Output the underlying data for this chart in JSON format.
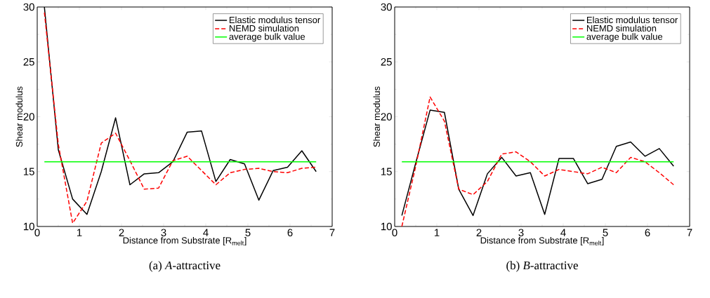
{
  "chart_data": [
    {
      "type": "line",
      "subtitle": "(a) *A*-attractive",
      "xlabel": "Distance from Substrate [R$_{melt}$]",
      "ylabel": "Shear modulus",
      "xlim": [
        0,
        7
      ],
      "ylim": [
        10,
        30
      ],
      "xticks": [
        0,
        1,
        2,
        3,
        4,
        5,
        6,
        7
      ],
      "yticks": [
        10,
        15,
        20,
        25,
        30
      ],
      "legend": "top right",
      "grid": false,
      "series": [
        {
          "name": "Elastic modulus tensor",
          "color": "#000000",
          "line_style": "solid",
          "x": [
            0.17,
            0.5,
            0.84,
            1.18,
            1.52,
            1.86,
            2.2,
            2.54,
            2.88,
            3.22,
            3.56,
            3.9,
            4.24,
            4.58,
            4.92,
            5.26,
            5.6,
            5.94,
            6.28,
            6.62
          ],
          "values": [
            30,
            17.0,
            12.5,
            11.1,
            15.0,
            19.9,
            13.8,
            14.8,
            14.9,
            15.9,
            18.6,
            18.7,
            14.1,
            16.1,
            15.7,
            12.4,
            15.1,
            15.4,
            16.9,
            15.0
          ]
        },
        {
          "name": "NEMD simulation",
          "color": "#ff0000",
          "line_style": "dashed",
          "x": [
            0.17,
            0.5,
            0.84,
            1.18,
            1.52,
            1.86,
            2.2,
            2.54,
            2.88,
            3.22,
            3.56,
            3.9,
            4.24,
            4.58,
            4.92,
            5.26,
            5.6,
            5.94,
            6.28,
            6.62
          ],
          "values": [
            29.5,
            17.5,
            10.3,
            12.3,
            17.6,
            18.5,
            16.0,
            13.4,
            13.5,
            16.0,
            16.4,
            15.1,
            13.8,
            14.9,
            15.2,
            15.3,
            15.0,
            14.9,
            15.3,
            15.4
          ]
        },
        {
          "name": "average bulk value",
          "color": "#00ff00",
          "line_style": "solid",
          "x": [
            0.17,
            6.62
          ],
          "values": [
            15.9,
            15.9
          ]
        }
      ]
    },
    {
      "type": "line",
      "subtitle": "(b) *B*-attractive",
      "xlabel": "Distance from Substrate [R$_{melt}$]",
      "ylabel": "Shear modulus",
      "xlim": [
        0,
        7
      ],
      "ylim": [
        10,
        30
      ],
      "xticks": [
        0,
        1,
        2,
        3,
        4,
        5,
        6,
        7
      ],
      "yticks": [
        10,
        15,
        20,
        25,
        30
      ],
      "legend": "top right",
      "grid": false,
      "series": [
        {
          "name": "Elastic modulus tensor",
          "color": "#000000",
          "line_style": "solid",
          "x": [
            0.17,
            0.5,
            0.84,
            1.18,
            1.52,
            1.86,
            2.2,
            2.54,
            2.88,
            3.22,
            3.56,
            3.9,
            4.24,
            4.58,
            4.92,
            5.26,
            5.6,
            5.94,
            6.28,
            6.62
          ],
          "values": [
            11.0,
            15.8,
            20.6,
            20.4,
            13.4,
            11.0,
            14.8,
            16.3,
            14.6,
            14.9,
            11.1,
            16.2,
            16.2,
            13.9,
            14.3,
            17.3,
            17.7,
            16.4,
            17.1,
            15.5
          ]
        },
        {
          "name": "NEMD simulation",
          "color": "#ff0000",
          "line_style": "dashed",
          "x": [
            0.17,
            0.5,
            0.84,
            1.18,
            1.52,
            1.86,
            2.2,
            2.54,
            2.88,
            3.22,
            3.56,
            3.9,
            4.24,
            4.58,
            4.92,
            5.26,
            5.6,
            5.94,
            6.28,
            6.62
          ],
          "values": [
            10.0,
            15.5,
            21.8,
            19.6,
            13.4,
            12.9,
            14.1,
            16.6,
            16.8,
            15.9,
            14.6,
            15.2,
            15.0,
            14.8,
            15.4,
            14.9,
            16.3,
            15.9,
            14.9,
            13.8
          ]
        },
        {
          "name": "average bulk value",
          "color": "#00ff00",
          "line_style": "solid",
          "x": [
            0.17,
            6.62
          ],
          "values": [
            15.9,
            15.9
          ]
        }
      ]
    }
  ]
}
